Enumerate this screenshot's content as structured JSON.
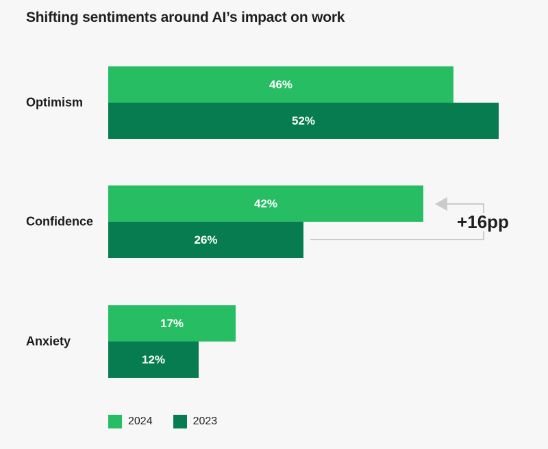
{
  "title": "Shifting sentiments around AI’s impact on work",
  "chart_data": {
    "type": "bar",
    "orientation": "horizontal",
    "title": "Shifting sentiments around AI’s impact on work",
    "categories": [
      "Optimism",
      "Confidence",
      "Anxiety"
    ],
    "series": [
      {
        "name": "2024",
        "color": "#27bd63",
        "values": [
          46,
          42,
          17
        ]
      },
      {
        "name": "2023",
        "color": "#067c50",
        "values": [
          52,
          26,
          12
        ]
      }
    ],
    "value_suffix": "%",
    "xlim": [
      0,
      55
    ],
    "grid": false,
    "legend": [
      "2024",
      "2023"
    ],
    "legend_position": "bottom-left",
    "annotation": {
      "text": "+16pp",
      "category": "Confidence"
    },
    "colors": {
      "background": "#f7f7f7",
      "annotation_line": "#cbcbcb",
      "text": "#1f1f1f",
      "bar_value_text": "#ffffff"
    }
  }
}
